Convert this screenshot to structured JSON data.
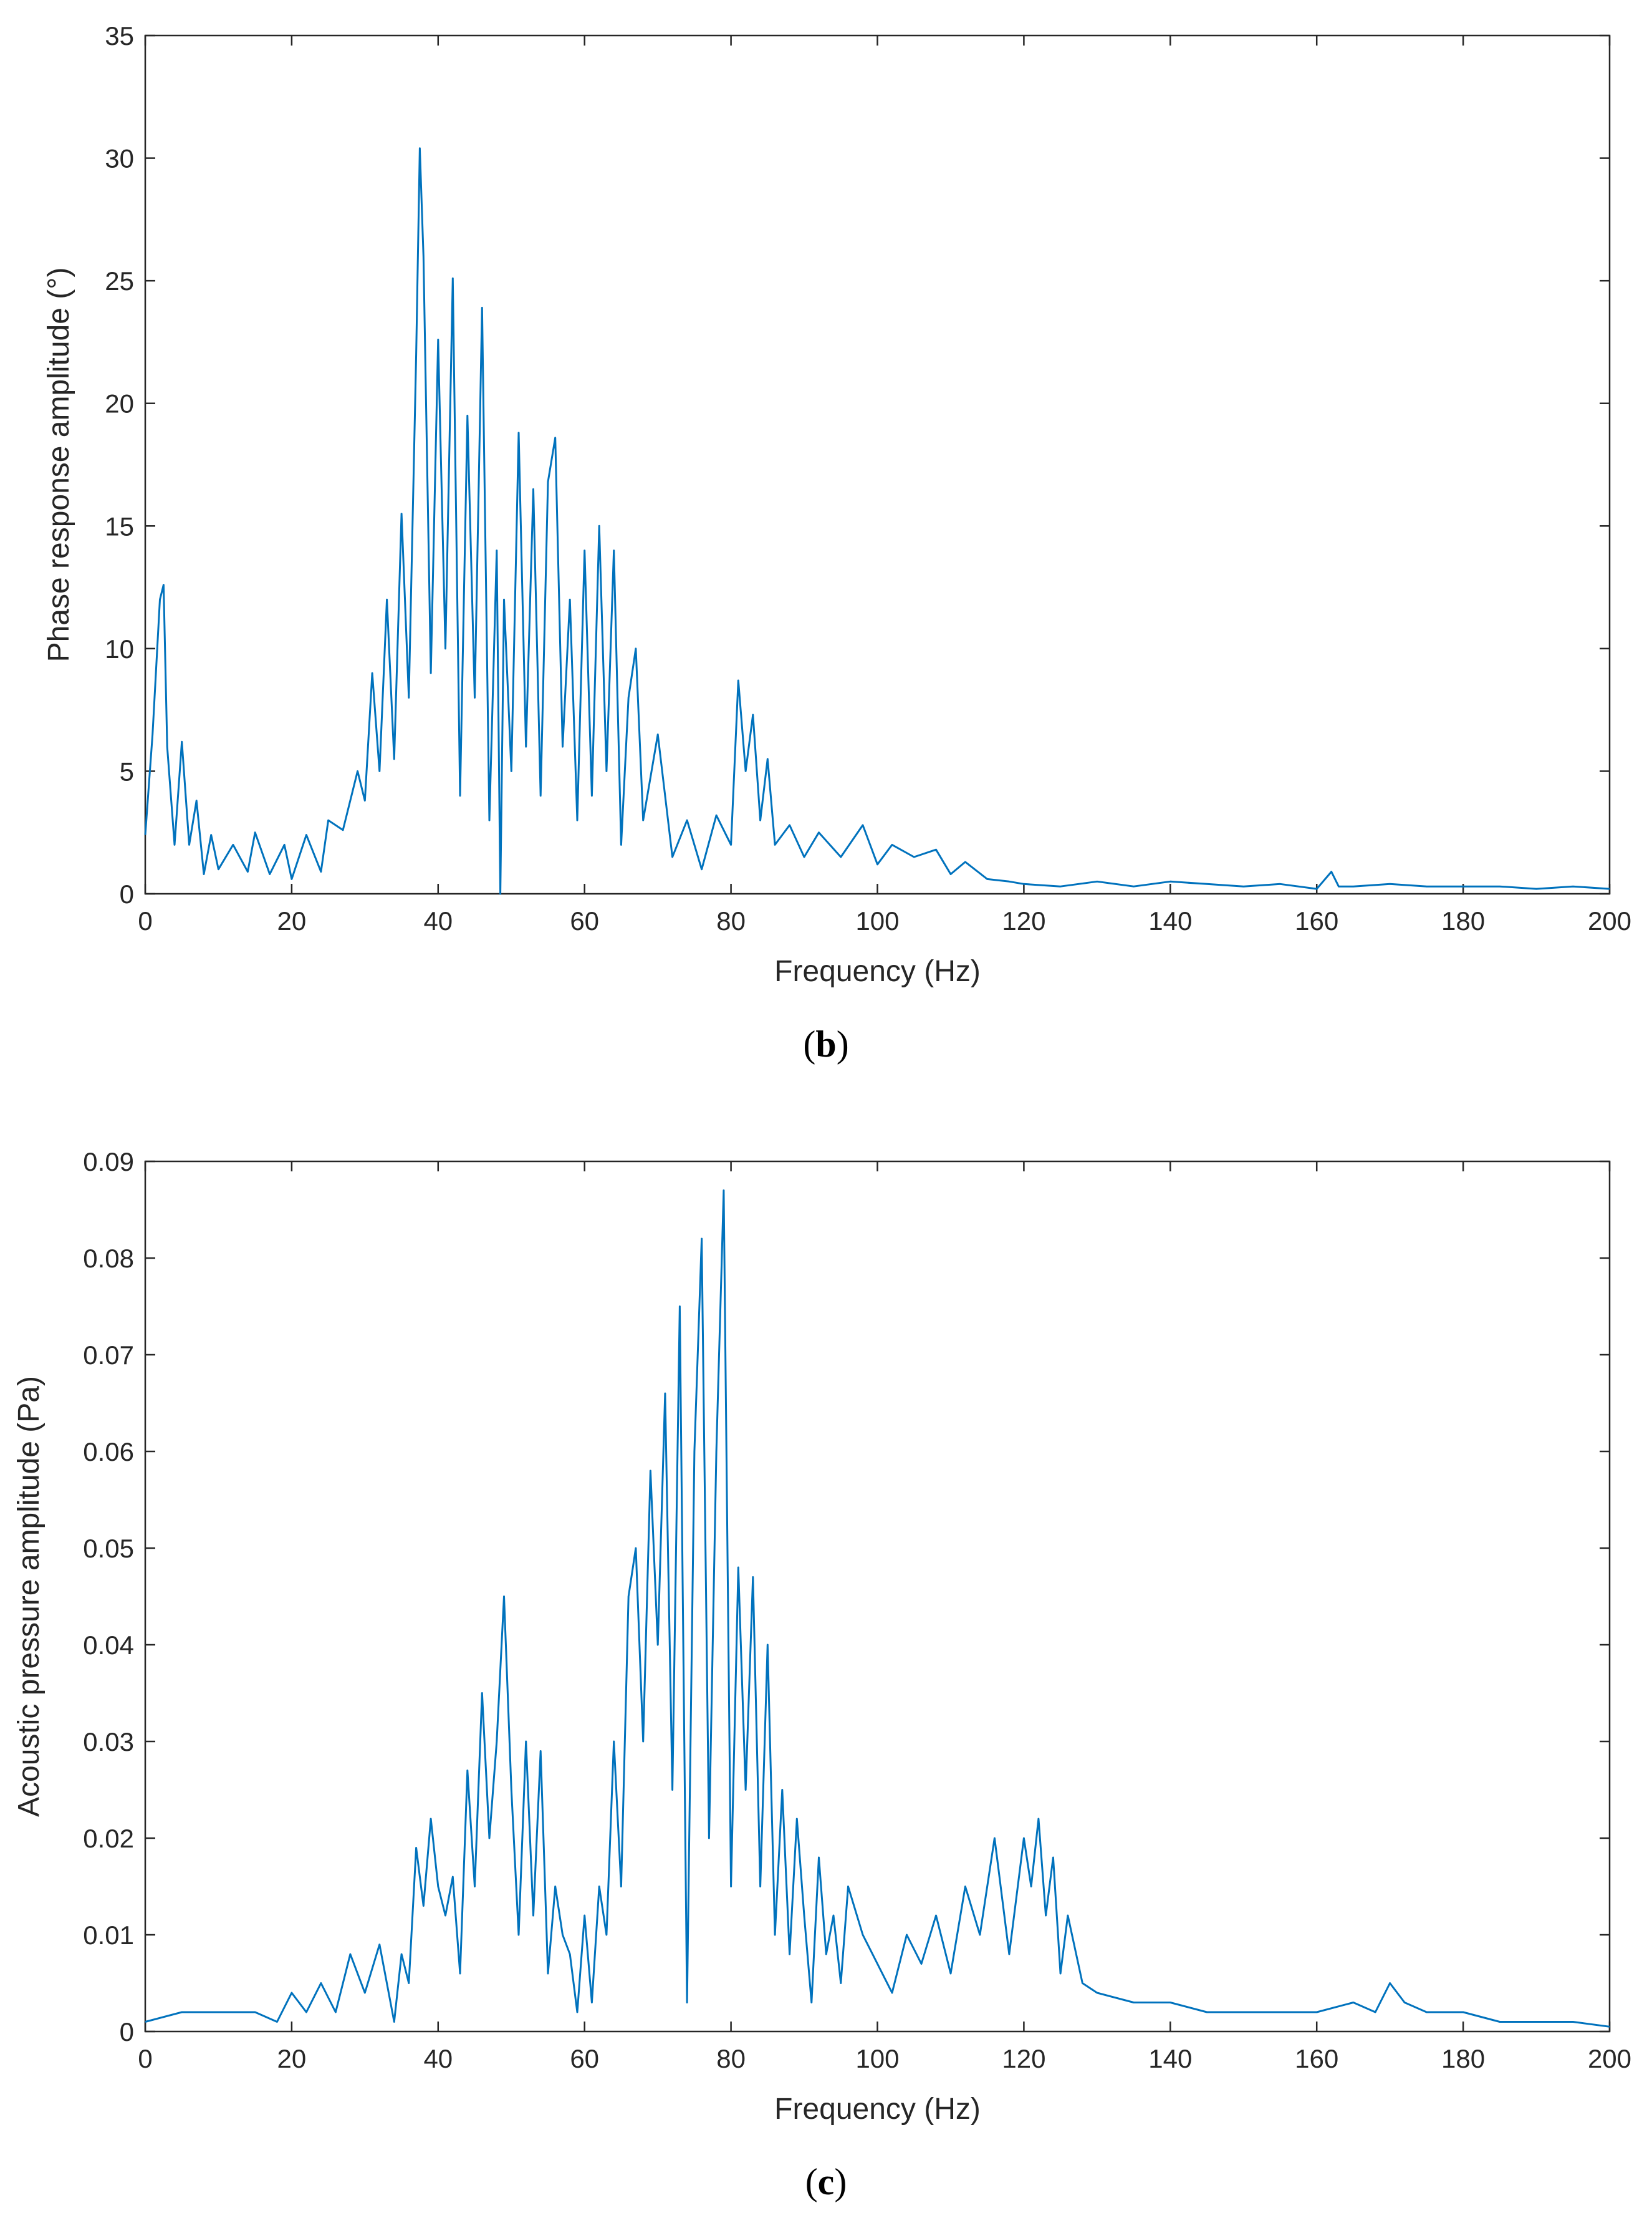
{
  "chart_data": [
    {
      "type": "line",
      "caption": "b",
      "xlabel": "Frequency (Hz)",
      "ylabel": "Phase response amplitude (°)",
      "xlim": [
        0,
        200
      ],
      "ylim": [
        0,
        35
      ],
      "xticks": [
        0,
        20,
        40,
        60,
        80,
        100,
        120,
        140,
        160,
        180,
        200
      ],
      "yticks": [
        0,
        5,
        10,
        15,
        20,
        25,
        30,
        35
      ],
      "color": "#0072BD",
      "series": [
        {
          "name": "phase",
          "x": [
            0,
            1,
            2,
            2.5,
            3,
            4,
            5,
            6,
            7,
            8,
            9,
            10,
            12,
            14,
            15,
            17,
            19,
            20,
            22,
            24,
            25,
            27,
            29,
            30,
            31,
            32,
            33,
            34,
            35,
            36,
            37,
            37.5,
            38,
            39,
            40,
            41,
            42,
            43,
            44,
            45,
            46,
            47,
            48,
            48.5,
            49,
            50,
            51,
            52,
            53,
            54,
            55,
            56,
            57,
            58,
            59,
            60,
            61,
            62,
            63,
            64,
            65,
            66,
            67,
            68,
            70,
            72,
            74,
            76,
            78,
            80,
            81,
            82,
            83,
            84,
            85,
            86,
            88,
            90,
            92,
            95,
            98,
            100,
            102,
            105,
            108,
            110,
            112,
            115,
            118,
            120,
            125,
            130,
            135,
            140,
            145,
            150,
            155,
            160,
            162,
            163,
            165,
            170,
            175,
            180,
            185,
            190,
            195,
            200
          ],
          "y": [
            2.4,
            6.5,
            12.0,
            12.6,
            6.0,
            2.0,
            6.2,
            2.0,
            3.8,
            0.8,
            2.4,
            1.0,
            2.0,
            0.9,
            2.5,
            0.8,
            2.0,
            0.6,
            2.4,
            0.9,
            3.0,
            2.6,
            5.0,
            3.8,
            9.0,
            5.0,
            12.0,
            5.5,
            15.5,
            8.0,
            22.0,
            30.4,
            26.0,
            9.0,
            22.6,
            10.0,
            25.1,
            4.0,
            19.5,
            8.0,
            23.9,
            3.0,
            14.0,
            0.0,
            12.0,
            5.0,
            18.8,
            6.0,
            16.5,
            4.0,
            16.8,
            18.6,
            6.0,
            12.0,
            3.0,
            14.0,
            4.0,
            15.0,
            5.0,
            14.0,
            2.0,
            8.0,
            10.0,
            3.0,
            6.5,
            1.5,
            3.0,
            1.0,
            3.2,
            2.0,
            8.7,
            5.0,
            7.3,
            3.0,
            5.5,
            2.0,
            2.8,
            1.5,
            2.5,
            1.5,
            2.8,
            1.2,
            2.0,
            1.5,
            1.8,
            0.8,
            1.3,
            0.6,
            0.5,
            0.4,
            0.3,
            0.5,
            0.3,
            0.5,
            0.4,
            0.3,
            0.4,
            0.2,
            0.9,
            0.3,
            0.3,
            0.4,
            0.3,
            0.3,
            0.3,
            0.2,
            0.3,
            0.2
          ]
        }
      ]
    },
    {
      "type": "line",
      "caption": "c",
      "xlabel": "Frequency (Hz)",
      "ylabel": "Acoustic pressure amplitude (Pa)",
      "xlim": [
        0,
        200
      ],
      "ylim": [
        0,
        0.09
      ],
      "xticks": [
        0,
        20,
        40,
        60,
        80,
        100,
        120,
        140,
        160,
        180,
        200
      ],
      "yticks": [
        0,
        0.01,
        0.02,
        0.03,
        0.04,
        0.05,
        0.06,
        0.07,
        0.08,
        0.09
      ],
      "ytick_labels": [
        "0",
        "0.01",
        "0.02",
        "0.03",
        "0.04",
        "0.05",
        "0.06",
        "0.07",
        "0.08",
        "0.09"
      ],
      "color": "#0072BD",
      "series": [
        {
          "name": "pressure",
          "x": [
            0,
            5,
            10,
            15,
            18,
            20,
            22,
            24,
            26,
            28,
            30,
            32,
            34,
            35,
            36,
            37,
            38,
            39,
            40,
            41,
            42,
            43,
            44,
            45,
            46,
            47,
            48,
            49,
            50,
            51,
            52,
            53,
            54,
            55,
            56,
            57,
            58,
            59,
            60,
            61,
            62,
            63,
            64,
            65,
            66,
            67,
            68,
            69,
            70,
            71,
            72,
            73,
            74,
            75,
            76,
            77,
            78,
            79,
            80,
            81,
            82,
            83,
            84,
            85,
            86,
            87,
            88,
            89,
            90,
            91,
            92,
            93,
            94,
            95,
            96,
            98,
            100,
            102,
            104,
            106,
            108,
            110,
            112,
            114,
            116,
            118,
            120,
            121,
            122,
            123,
            124,
            125,
            126,
            128,
            130,
            135,
            140,
            145,
            150,
            155,
            160,
            165,
            168,
            170,
            172,
            175,
            180,
            185,
            190,
            195,
            200
          ],
          "y": [
            0.001,
            0.002,
            0.002,
            0.002,
            0.001,
            0.004,
            0.002,
            0.005,
            0.002,
            0.008,
            0.004,
            0.009,
            0.001,
            0.008,
            0.005,
            0.019,
            0.013,
            0.022,
            0.015,
            0.012,
            0.016,
            0.006,
            0.027,
            0.015,
            0.035,
            0.02,
            0.03,
            0.045,
            0.025,
            0.01,
            0.03,
            0.012,
            0.029,
            0.006,
            0.015,
            0.01,
            0.008,
            0.002,
            0.012,
            0.003,
            0.015,
            0.01,
            0.03,
            0.015,
            0.045,
            0.05,
            0.03,
            0.058,
            0.04,
            0.066,
            0.025,
            0.075,
            0.003,
            0.06,
            0.082,
            0.02,
            0.06,
            0.087,
            0.015,
            0.048,
            0.025,
            0.047,
            0.015,
            0.04,
            0.01,
            0.025,
            0.008,
            0.022,
            0.012,
            0.003,
            0.018,
            0.008,
            0.012,
            0.005,
            0.015,
            0.01,
            0.007,
            0.004,
            0.01,
            0.007,
            0.012,
            0.006,
            0.015,
            0.01,
            0.02,
            0.008,
            0.02,
            0.015,
            0.022,
            0.012,
            0.018,
            0.006,
            0.012,
            0.005,
            0.004,
            0.003,
            0.003,
            0.002,
            0.002,
            0.002,
            0.002,
            0.003,
            0.002,
            0.005,
            0.003,
            0.002,
            0.002,
            0.001,
            0.001,
            0.001,
            0.0005
          ]
        }
      ]
    }
  ]
}
